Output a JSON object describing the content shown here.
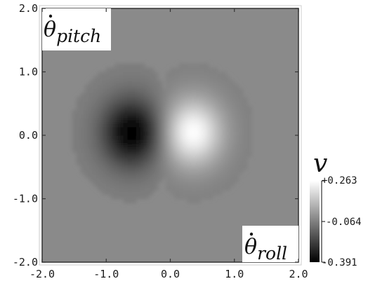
{
  "chart_data": {
    "type": "heatmap",
    "title": "",
    "xlabel": "θ̇roll",
    "ylabel": "θ̇pitch",
    "xlabel_parts": {
      "base": "θ",
      "sub": "roll"
    },
    "ylabel_parts": {
      "base": "θ",
      "sub": "pitch"
    },
    "xlim": [
      -2.0,
      2.0
    ],
    "ylim": [
      -2.0,
      2.0
    ],
    "xticks": [
      "-2.0",
      "-1.0",
      "0.0",
      "1.0",
      "2.0"
    ],
    "yticks": [
      "-2.0",
      "-1.0",
      "0.0",
      "1.0",
      "2.0"
    ],
    "colorbar": {
      "label": "v",
      "ticks": [
        "+0.263",
        "-0.064",
        "-0.391"
      ],
      "vmax": 0.263,
      "vmid": -0.064,
      "vmin": -0.391,
      "colormap": "grayscale"
    },
    "background_value": -0.064,
    "features": [
      {
        "kind": "trough",
        "x": -0.6,
        "y": 0.05,
        "value": -0.391
      },
      {
        "kind": "peak",
        "x": 0.35,
        "y": 0.05,
        "value": 0.263
      }
    ],
    "grid": false
  },
  "colors": {
    "background_gray": "#8a8a8a",
    "frame": "#333333",
    "text": "#1a1a1a"
  }
}
